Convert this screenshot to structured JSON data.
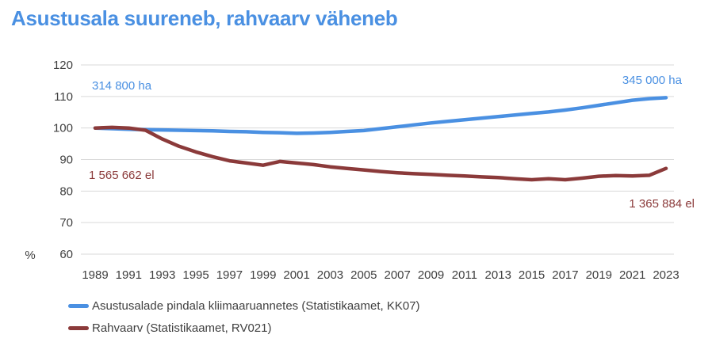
{
  "title": "Asustusala suureneb, rahvaarv väheneb",
  "colors": {
    "title": "#4a90e2",
    "area": "#4a90e2",
    "population": "#8b3a3a",
    "grid": "#d9d9d9",
    "axis_text": "#404040"
  },
  "chart_data": {
    "type": "line",
    "title": "Asustusala suureneb, rahvaarv väheneb",
    "ylabel": "%",
    "xlabel": "",
    "ylim": [
      60,
      120
    ],
    "yticks": [
      60,
      70,
      80,
      90,
      100,
      110,
      120
    ],
    "xlim": [
      1989,
      2023
    ],
    "xticks": [
      1989,
      1991,
      1993,
      1995,
      1997,
      1999,
      2001,
      2003,
      2005,
      2007,
      2009,
      2011,
      2013,
      2015,
      2017,
      2019,
      2021,
      2023
    ],
    "grid": true,
    "legend_position": "bottom-left",
    "x": [
      1989,
      1990,
      1991,
      1992,
      1993,
      1994,
      1995,
      1996,
      1997,
      1998,
      1999,
      2000,
      2001,
      2002,
      2003,
      2004,
      2005,
      2006,
      2007,
      2008,
      2009,
      2010,
      2011,
      2012,
      2013,
      2014,
      2015,
      2016,
      2017,
      2018,
      2019,
      2020,
      2021,
      2022,
      2023
    ],
    "series": [
      {
        "name": "Asustusalade pindala kliimaaruannetes (Statistikaamet, KK07)",
        "color": "#4a90e2",
        "values": [
          100,
          99.8,
          99.6,
          99.5,
          99.4,
          99.3,
          99.2,
          99.1,
          98.9,
          98.8,
          98.6,
          98.5,
          98.3,
          98.4,
          98.6,
          98.9,
          99.2,
          99.8,
          100.4,
          101.0,
          101.6,
          102.1,
          102.6,
          103.1,
          103.6,
          104.1,
          104.6,
          105.1,
          105.7,
          106.4,
          107.2,
          108.0,
          108.8,
          109.3,
          109.6
        ],
        "start_label": "314 800 ha",
        "end_label": "345 000 ha"
      },
      {
        "name": "Rahvaarv (Statistikaamet, RV021)",
        "color": "#8b3a3a",
        "values": [
          100,
          100.2,
          100.0,
          99.3,
          96.5,
          94.2,
          92.4,
          90.9,
          89.6,
          88.9,
          88.2,
          89.4,
          88.9,
          88.4,
          87.7,
          87.2,
          86.7,
          86.2,
          85.8,
          85.5,
          85.3,
          85.0,
          84.8,
          84.5,
          84.3,
          83.9,
          83.6,
          83.9,
          83.6,
          84.1,
          84.7,
          84.9,
          84.8,
          85.0,
          87.2
        ],
        "start_label": "1 565 662 el",
        "end_label": "1 365 884 el"
      }
    ]
  },
  "legend": [
    {
      "label": "Asustusalade pindala kliimaaruannetes (Statistikaamet, KK07)",
      "color": "#4a90e2"
    },
    {
      "label": "Rahvaarv (Statistikaamet, RV021)",
      "color": "#8b3a3a"
    }
  ]
}
